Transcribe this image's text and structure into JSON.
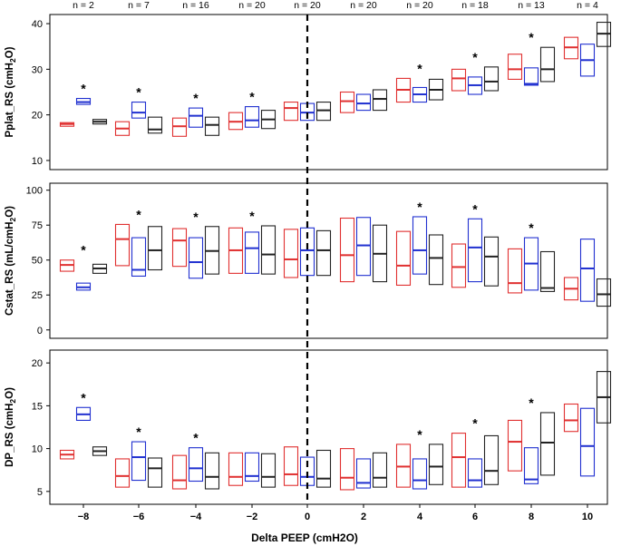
{
  "chart_data": {
    "type": "boxplot",
    "xlabel": "Delta PEEP (cmH2O)",
    "x_ticks": [
      -8,
      -6,
      -4,
      -2,
      0,
      2,
      4,
      6,
      8,
      10
    ],
    "x_tick_labels": [
      "−8",
      "−6",
      "−4",
      "−2",
      "0",
      "2",
      "4",
      "6",
      "8",
      "10"
    ],
    "n_labels": [
      "n = 2",
      "n = 7",
      "n = 16",
      "n = 20",
      "n = 20",
      "n = 20",
      "n = 20",
      "n = 18",
      "n = 13",
      "n = 4"
    ],
    "reference_line_x": 0,
    "colors": {
      "series_1": "#e03030",
      "series_2": "#2030d0",
      "series_3": "#222222",
      "axis": "#000000"
    },
    "significance_marker": "*",
    "panels": [
      {
        "id": "pplat",
        "ylabel_main": "Pplat_RS (cmH",
        "ylabel_sub": "2",
        "ylabel_end": "O)",
        "ylim": [
          8,
          42
        ],
        "yticks": [
          10,
          20,
          30,
          40
        ],
        "significant_at": [
          -8,
          -6,
          -4,
          -2,
          4,
          6,
          8
        ],
        "boxes": [
          [
            [
              17.5,
              18.0,
              18.3
            ],
            [
              22.3,
              22.8,
              23.6
            ],
            [
              18.0,
              18.5,
              19.0
            ]
          ],
          [
            [
              15.5,
              17.0,
              18.5
            ],
            [
              19.3,
              20.5,
              22.8
            ],
            [
              16.0,
              16.8,
              19.5
            ]
          ],
          [
            [
              15.3,
              17.5,
              19.3
            ],
            [
              17.3,
              19.8,
              21.5
            ],
            [
              15.5,
              17.8,
              19.5
            ]
          ],
          [
            [
              16.8,
              18.5,
              20.5
            ],
            [
              17.3,
              18.8,
              21.8
            ],
            [
              17.0,
              19.0,
              21.0
            ]
          ],
          [
            [
              18.8,
              21.5,
              22.8
            ],
            [
              18.8,
              20.5,
              22.5
            ],
            [
              18.8,
              21.0,
              22.8
            ]
          ],
          [
            [
              20.5,
              23.0,
              25.0
            ],
            [
              21.0,
              22.5,
              24.5
            ],
            [
              21.0,
              23.5,
              25.5
            ]
          ],
          [
            [
              22.8,
              25.5,
              28.0
            ],
            [
              22.8,
              24.5,
              26.0
            ],
            [
              23.3,
              25.5,
              27.8
            ]
          ],
          [
            [
              25.3,
              28.0,
              30.0
            ],
            [
              24.5,
              26.5,
              28.3
            ],
            [
              25.3,
              27.3,
              30.5
            ]
          ],
          [
            [
              27.8,
              30.0,
              33.3
            ],
            [
              26.5,
              26.8,
              30.3
            ],
            [
              27.3,
              30.0,
              34.8
            ]
          ],
          [
            [
              32.3,
              34.8,
              37.0
            ],
            [
              28.5,
              32.0,
              35.5
            ],
            [
              35.0,
              37.8,
              40.3
            ]
          ]
        ]
      },
      {
        "id": "cstat",
        "ylabel_main": "Cstat_RS (mL/cmH",
        "ylabel_sub": "2",
        "ylabel_end": "O)",
        "ylim": [
          -6,
          105
        ],
        "yticks": [
          0,
          25,
          50,
          75,
          100
        ],
        "significant_at": [
          -8,
          -6,
          -4,
          -2,
          4,
          6,
          8
        ],
        "boxes": [
          [
            [
              42.0,
              46.5,
              50.0
            ],
            [
              28.5,
              30.5,
              33.5
            ],
            [
              40.5,
              44.0,
              47.0
            ]
          ],
          [
            [
              46.0,
              65.0,
              75.5
            ],
            [
              38.5,
              43.0,
              66.0
            ],
            [
              43.0,
              57.0,
              74.0
            ]
          ],
          [
            [
              45.5,
              64.0,
              72.5
            ],
            [
              37.0,
              48.5,
              66.0
            ],
            [
              40.0,
              56.5,
              74.0
            ]
          ],
          [
            [
              40.5,
              57.0,
              73.0
            ],
            [
              40.5,
              58.5,
              70.0
            ],
            [
              40.0,
              54.0,
              74.5
            ]
          ],
          [
            [
              37.5,
              50.5,
              72.0
            ],
            [
              39.0,
              57.0,
              73.0
            ],
            [
              39.0,
              57.0,
              71.0
            ]
          ],
          [
            [
              34.5,
              53.5,
              80.0
            ],
            [
              39.0,
              60.5,
              80.5
            ],
            [
              34.5,
              54.5,
              75.0
            ]
          ],
          [
            [
              32.0,
              46.0,
              70.5
            ],
            [
              40.0,
              57.0,
              81.0
            ],
            [
              32.5,
              51.5,
              68.0
            ]
          ],
          [
            [
              30.5,
              45.0,
              61.5
            ],
            [
              34.5,
              59.0,
              79.5
            ],
            [
              31.5,
              52.5,
              66.5
            ]
          ],
          [
            [
              26.5,
              33.5,
              58.0
            ],
            [
              28.5,
              47.5,
              66.0
            ],
            [
              27.5,
              30.0,
              56.0
            ]
          ],
          [
            [
              21.5,
              29.5,
              37.5
            ],
            [
              20.5,
              44.0,
              65.0
            ],
            [
              17.0,
              25.5,
              36.5
            ]
          ]
        ]
      },
      {
        "id": "dp",
        "ylabel_main": "DP_RS (cmH",
        "ylabel_sub": "2",
        "ylabel_end": "O)",
        "ylim": [
          3.5,
          21.5
        ],
        "yticks": [
          5,
          10,
          15,
          20
        ],
        "significant_at": [
          -8,
          -6,
          -4,
          4,
          6,
          8
        ],
        "boxes": [
          [
            [
              8.8,
              9.3,
              9.8
            ],
            [
              13.3,
              14.0,
              14.8
            ],
            [
              9.2,
              9.7,
              10.2
            ]
          ],
          [
            [
              5.5,
              6.8,
              8.8
            ],
            [
              6.3,
              9.0,
              10.8
            ],
            [
              5.5,
              7.7,
              8.9
            ]
          ],
          [
            [
              5.3,
              6.3,
              9.2
            ],
            [
              6.2,
              7.7,
              10.1
            ],
            [
              5.3,
              6.7,
              9.5
            ]
          ],
          [
            [
              5.7,
              6.7,
              9.5
            ],
            [
              6.2,
              6.8,
              9.5
            ],
            [
              5.5,
              6.7,
              9.4
            ]
          ],
          [
            [
              5.7,
              7.0,
              10.2
            ],
            [
              5.7,
              6.7,
              9.0
            ],
            [
              5.5,
              6.5,
              9.8
            ]
          ],
          [
            [
              5.2,
              6.6,
              10.0
            ],
            [
              5.4,
              6.0,
              8.8
            ],
            [
              5.5,
              6.6,
              9.5
            ]
          ],
          [
            [
              5.5,
              7.9,
              10.5
            ],
            [
              5.3,
              6.3,
              8.8
            ],
            [
              5.8,
              7.9,
              10.5
            ]
          ],
          [
            [
              5.5,
              9.0,
              11.8
            ],
            [
              5.5,
              6.3,
              8.8
            ],
            [
              5.8,
              7.4,
              11.5
            ]
          ],
          [
            [
              7.4,
              10.8,
              13.3
            ],
            [
              5.9,
              6.4,
              10.1
            ],
            [
              6.9,
              10.7,
              14.2
            ]
          ],
          [
            [
              12.0,
              13.3,
              15.2
            ],
            [
              6.8,
              10.3,
              14.7
            ],
            [
              13.0,
              16.0,
              19.0
            ]
          ]
        ]
      }
    ]
  }
}
